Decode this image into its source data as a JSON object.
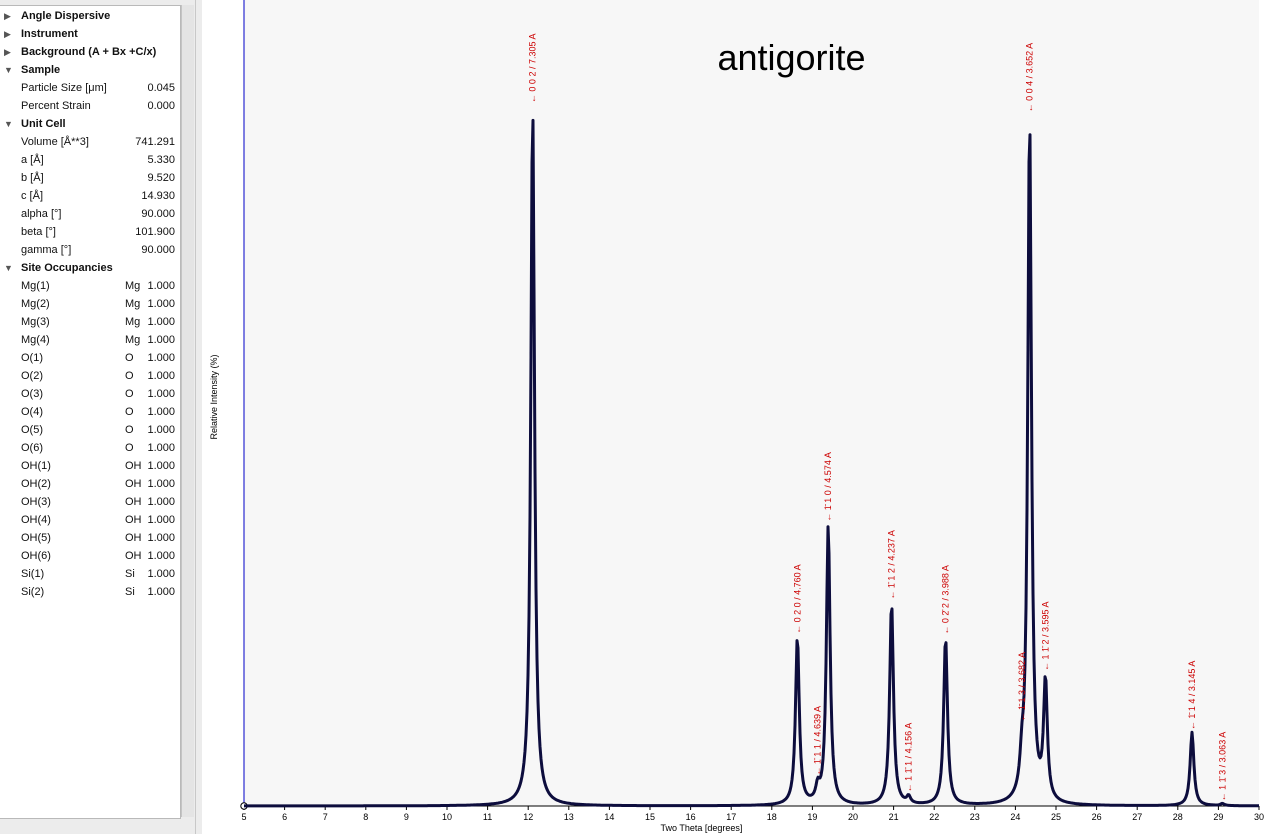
{
  "tree": {
    "sections": [
      {
        "label": "Angle Dispersive",
        "expanded": false
      },
      {
        "label": "Instrument",
        "expanded": false
      },
      {
        "label": "Background (A + Bx +C/x)",
        "expanded": false
      },
      {
        "label": "Sample",
        "expanded": true,
        "params": [
          {
            "name": "Particle Size [μm]",
            "value": "0.045"
          },
          {
            "name": "Percent Strain",
            "value": "0.000"
          }
        ]
      },
      {
        "label": "Unit Cell",
        "expanded": true,
        "params": [
          {
            "name": "Volume [Å**3]",
            "value": "741.291"
          },
          {
            "name": "a [Å]",
            "value": "5.330"
          },
          {
            "name": "b [Å]",
            "value": "9.520"
          },
          {
            "name": "c [Å]",
            "value": "14.930"
          },
          {
            "name": "alpha [°]",
            "value": "90.000"
          },
          {
            "name": "beta [°]",
            "value": "101.900"
          },
          {
            "name": "gamma [°]",
            "value": "90.000"
          }
        ]
      },
      {
        "label": "Site Occupancies",
        "expanded": true,
        "sites": [
          {
            "site": "Mg(1)",
            "element": "Mg",
            "occupancy": "1.000"
          },
          {
            "site": "Mg(2)",
            "element": "Mg",
            "occupancy": "1.000"
          },
          {
            "site": "Mg(3)",
            "element": "Mg",
            "occupancy": "1.000"
          },
          {
            "site": "Mg(4)",
            "element": "Mg",
            "occupancy": "1.000"
          },
          {
            "site": "O(1)",
            "element": "O",
            "occupancy": "1.000"
          },
          {
            "site": "O(2)",
            "element": "O",
            "occupancy": "1.000"
          },
          {
            "site": "O(3)",
            "element": "O",
            "occupancy": "1.000"
          },
          {
            "site": "O(4)",
            "element": "O",
            "occupancy": "1.000"
          },
          {
            "site": "O(5)",
            "element": "O",
            "occupancy": "1.000"
          },
          {
            "site": "O(6)",
            "element": "O",
            "occupancy": "1.000"
          },
          {
            "site": "OH(1)",
            "element": "OH",
            "occupancy": "1.000"
          },
          {
            "site": "OH(2)",
            "element": "OH",
            "occupancy": "1.000"
          },
          {
            "site": "OH(3)",
            "element": "OH",
            "occupancy": "1.000"
          },
          {
            "site": "OH(4)",
            "element": "OH",
            "occupancy": "1.000"
          },
          {
            "site": "OH(5)",
            "element": "OH",
            "occupancy": "1.000"
          },
          {
            "site": "OH(6)",
            "element": "OH",
            "occupancy": "1.000"
          },
          {
            "site": "Si(1)",
            "element": "Si",
            "occupancy": "1.000"
          },
          {
            "site": "Si(2)",
            "element": "Si",
            "occupancy": "1.000"
          }
        ]
      }
    ],
    "icons": {
      "collapsed": "triangle-right-icon",
      "expanded": "triangle-down-icon"
    }
  },
  "chart_data": {
    "type": "line",
    "title": "antigorite",
    "xlabel": "Two Theta [degrees]",
    "ylabel": "Relative Intensity (%)",
    "xlim": [
      5,
      30
    ],
    "ylim": [
      0,
      115
    ],
    "x_ticks": [
      "5",
      "6",
      "7",
      "8",
      "9",
      "10",
      "11",
      "12",
      "13",
      "14",
      "15",
      "16",
      "17",
      "18",
      "19",
      "20",
      "21",
      "22",
      "23",
      "24",
      "25",
      "26",
      "27",
      "28",
      "29",
      "30"
    ],
    "grid": false,
    "peak_width": 0.055,
    "peaks": [
      {
        "two_theta": 12.11,
        "intensity": 100,
        "label": "0 0 2 / 7.305 A"
      },
      {
        "two_theta": 18.63,
        "intensity": 24,
        "label": "0 2 0 / 4.760 A"
      },
      {
        "two_theta": 19.13,
        "intensity": 2,
        "label": "1̄ 1 1 / 4.639 A"
      },
      {
        "two_theta": 19.39,
        "intensity": 40,
        "label": "1̄ 1 0 / 4.574 A"
      },
      {
        "two_theta": 20.95,
        "intensity": 29,
        "label": "1̄ 1 2 / 4.237 A"
      },
      {
        "two_theta": 21.37,
        "intensity": 1,
        "label": "1 1̄ 1 / 4.156 A"
      },
      {
        "two_theta": 22.28,
        "intensity": 24,
        "label": "0 2̄ 2 / 3.988 A"
      },
      {
        "two_theta": 24.16,
        "intensity": 4,
        "label": "1̄ 1 3 / 3.682 A"
      },
      {
        "two_theta": 24.35,
        "intensity": 98,
        "label": "0 0 4 / 3.652 A"
      },
      {
        "two_theta": 24.74,
        "intensity": 17,
        "label": "1 1̄ 2 / 3.595 A"
      },
      {
        "two_theta": 28.35,
        "intensity": 10.5,
        "label": "1̄ 1 4 / 3.145 A"
      },
      {
        "two_theta": 29.1,
        "intensity": 0.3,
        "label": "1 1̄ 3 / 3.063 A"
      }
    ],
    "colors": {
      "trace": "#0d0d3d",
      "label": "#cc0000",
      "y_axis": "#2b2bd0",
      "background": "#f7f7f7"
    }
  }
}
